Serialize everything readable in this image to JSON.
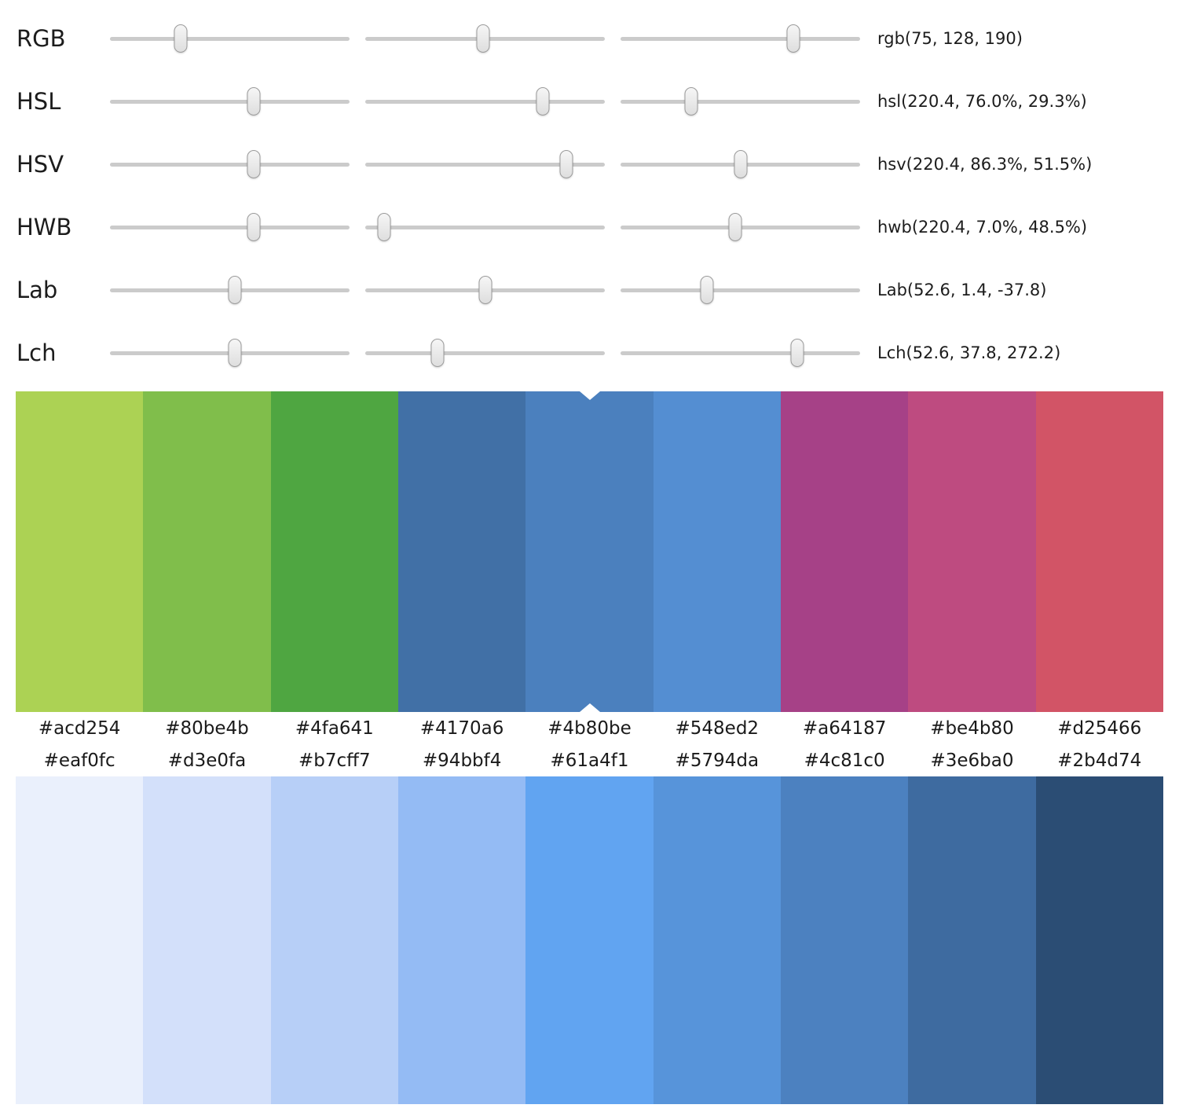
{
  "sliders": {
    "rows": [
      {
        "label": "RGB",
        "value": "rgb(75, 128, 190)",
        "positions": [
          29.4,
          49.2,
          72.1
        ]
      },
      {
        "label": "HSL",
        "value": "hsl(220.4, 76.0%, 29.3%)",
        "positions": [
          60.0,
          74.0,
          29.5
        ]
      },
      {
        "label": "HSV",
        "value": "hsv(220.4, 86.3%, 51.5%)",
        "positions": [
          60.0,
          84.0,
          50.0
        ]
      },
      {
        "label": "HWB",
        "value": "hwb(220.4, 7.0%, 48.5%)",
        "positions": [
          60.0,
          8.0,
          48.0
        ]
      },
      {
        "label": "Lab",
        "value": "Lab(52.6, 1.4, -37.8)",
        "positions": [
          52.0,
          50.2,
          36.0
        ]
      },
      {
        "label": "Lch",
        "value": "Lch(52.6, 37.8, 272.2)",
        "positions": [
          52.0,
          30.0,
          73.8
        ]
      }
    ]
  },
  "hue_palette": {
    "selected_index": 4,
    "swatches": [
      "#acd254",
      "#80be4b",
      "#4fa641",
      "#4170a6",
      "#4b80be",
      "#548ed2",
      "#a64187",
      "#be4b80",
      "#d25466"
    ]
  },
  "tint_scale": {
    "swatches": [
      "#eaf0fc",
      "#d3e0fa",
      "#b7cff7",
      "#94bbf4",
      "#61a4f1",
      "#5794da",
      "#4c81c0",
      "#3e6ba0",
      "#2b4d74"
    ]
  },
  "colors": {
    "track": "#cbcbcb",
    "thumb_fill": "#ececec",
    "thumb_border": "#9b9b9b",
    "marker": "#ffffff",
    "text": "#1c1c1c"
  }
}
